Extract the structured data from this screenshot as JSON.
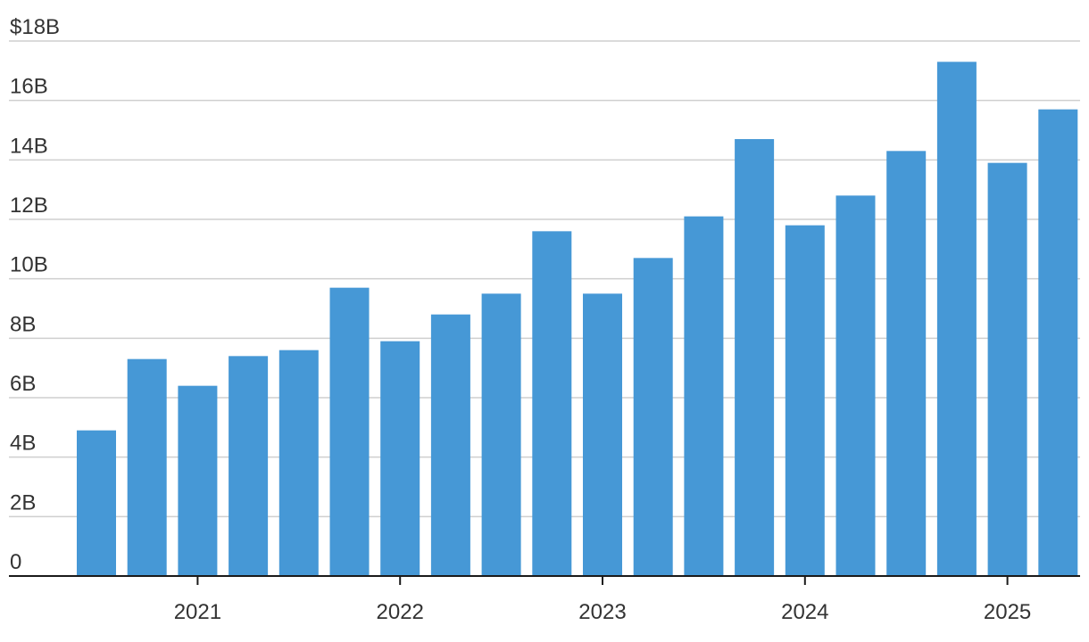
{
  "chart_data": {
    "type": "bar",
    "title": "",
    "xlabel": "",
    "ylabel": "",
    "ylim": [
      0,
      18
    ],
    "y_ticks": [
      {
        "value": 0,
        "label": "0"
      },
      {
        "value": 2,
        "label": "2B"
      },
      {
        "value": 4,
        "label": "4B"
      },
      {
        "value": 6,
        "label": "6B"
      },
      {
        "value": 8,
        "label": "8B"
      },
      {
        "value": 10,
        "label": "10B"
      },
      {
        "value": 12,
        "label": "12B"
      },
      {
        "value": 14,
        "label": "14B"
      },
      {
        "value": 16,
        "label": "16B"
      },
      {
        "value": 18,
        "label": "$18B"
      }
    ],
    "x_ticks": [
      {
        "at_bar": 2.5,
        "label": "2021"
      },
      {
        "at_bar": 6.5,
        "label": "2022"
      },
      {
        "at_bar": 10.5,
        "label": "2023"
      },
      {
        "at_bar": 14.5,
        "label": "2024"
      },
      {
        "at_bar": 18.5,
        "label": "2025"
      }
    ],
    "grid": true,
    "legend": "none",
    "bar_color": "#4698d6",
    "values": [
      4.9,
      7.3,
      6.4,
      7.4,
      7.6,
      9.7,
      7.9,
      8.8,
      9.5,
      11.6,
      9.5,
      10.7,
      12.1,
      14.7,
      11.8,
      12.8,
      14.3,
      17.3,
      13.9,
      15.7
    ]
  }
}
